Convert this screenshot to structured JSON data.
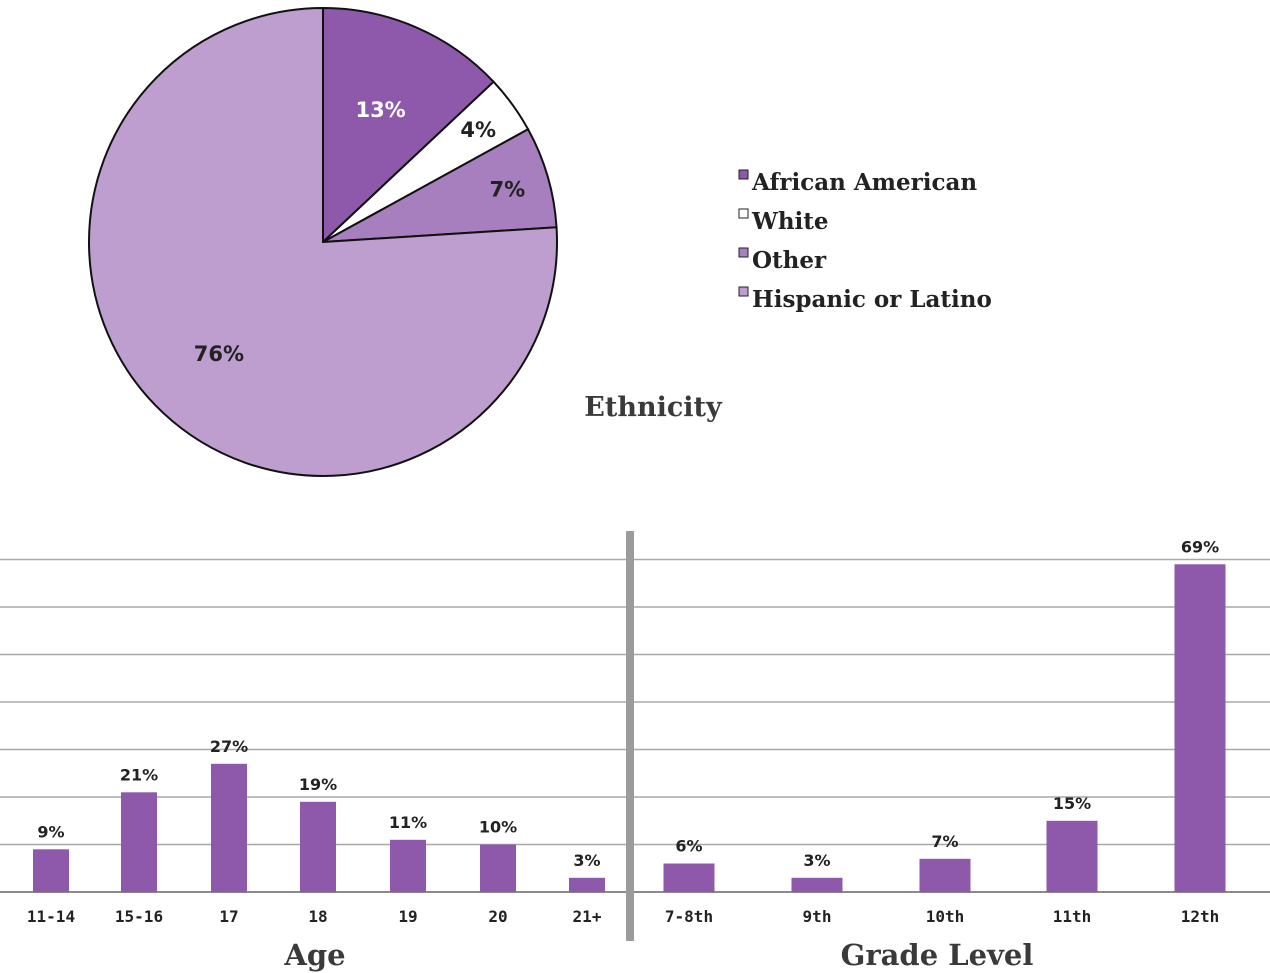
{
  "chart_data": [
    {
      "type": "pie",
      "title": "Ethnicity",
      "slices": [
        {
          "name": "African American",
          "value": 13,
          "label": "13%",
          "color": "#8e59ab"
        },
        {
          "name": "White",
          "value": 4,
          "label": "4%",
          "color": "#ffffff"
        },
        {
          "name": "Other",
          "value": 7,
          "label": "7%",
          "color": "#a77fbf"
        },
        {
          "name": "Hispanic or Latino",
          "value": 76,
          "label": "76%",
          "color": "#bd9ecf"
        }
      ],
      "legend": [
        "African American",
        "White",
        "Other",
        "Hispanic or Latino"
      ],
      "legend_position": "right"
    },
    {
      "type": "bar",
      "title": "Age",
      "categories": [
        "11-14",
        "15-16",
        "17",
        "18",
        "19",
        "20",
        "21+"
      ],
      "values": [
        9,
        21,
        27,
        19,
        11,
        10,
        3
      ],
      "labels": [
        "9%",
        "21%",
        "27%",
        "19%",
        "11%",
        "10%",
        "3%"
      ],
      "color": "#8e59ab",
      "grid": true
    },
    {
      "type": "bar",
      "title": "Grade Level",
      "categories": [
        "7-8th",
        "9th",
        "10th",
        "11th",
        "12th"
      ],
      "values": [
        6,
        3,
        7,
        15,
        69
      ],
      "labels": [
        "6%",
        "3%",
        "7%",
        "15%",
        "69%"
      ],
      "color": "#8e59ab",
      "grid": true
    }
  ]
}
